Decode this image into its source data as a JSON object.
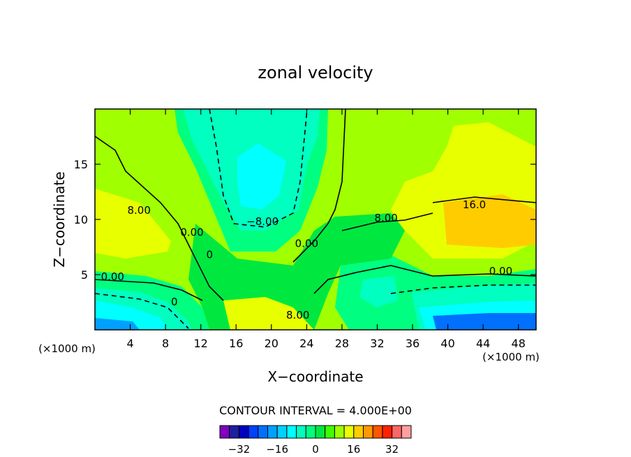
{
  "chart_data": {
    "type": "heatmap",
    "title": "zonal velocity",
    "xlabel": "X−coordinate",
    "ylabel": "Z−coordinate",
    "x_unit_label": "(×1000 m)",
    "y_unit_label": "(×1000 m)",
    "xlim": [
      0,
      50
    ],
    "ylim": [
      0,
      20
    ],
    "x_ticks": [
      4,
      8,
      12,
      16,
      20,
      24,
      28,
      32,
      36,
      40,
      44,
      48
    ],
    "y_ticks": [
      5,
      10,
      15
    ],
    "contour_interval_label": "CONTOUR INTERVAL = 4.000E+00",
    "contour_labels": [
      {
        "text": "8.00",
        "x": 5,
        "y": 10.5
      },
      {
        "text": "0.00",
        "x": 11,
        "y": 8.5
      },
      {
        "text": "0",
        "x": 13,
        "y": 6.5
      },
      {
        "text": "0.00",
        "x": 2,
        "y": 4.5
      },
      {
        "text": "−8.00",
        "x": 19,
        "y": 9.5
      },
      {
        "text": "0.00",
        "x": 24,
        "y": 7.5
      },
      {
        "text": "8.00",
        "x": 33,
        "y": 9.8
      },
      {
        "text": "16.0",
        "x": 43,
        "y": 11.0
      },
      {
        "text": "0.00",
        "x": 46,
        "y": 5.0
      },
      {
        "text": "8.00",
        "x": 23,
        "y": 1.0
      },
      {
        "text": "0",
        "x": 9,
        "y": 2.2
      }
    ],
    "colorbar": {
      "levels": [
        -36,
        -32,
        -28,
        -24,
        -20,
        -16,
        -12,
        -8,
        -4,
        0,
        4,
        8,
        12,
        16,
        20,
        24,
        28,
        32,
        36
      ],
      "tick_labels": [
        "−32",
        "−16",
        "0",
        "16",
        "32"
      ],
      "tick_values": [
        -32,
        -16,
        0,
        16,
        32
      ],
      "colors": [
        "#8000c0",
        "#2020a0",
        "#0000c0",
        "#0040ff",
        "#0070ff",
        "#00a0ff",
        "#00d0ff",
        "#00ffff",
        "#00ffc0",
        "#00ff80",
        "#00e840",
        "#40ff00",
        "#a0ff00",
        "#e8ff00",
        "#ffcc00",
        "#ff9900",
        "#ff5500",
        "#ff2200",
        "#ff6666",
        "#ffa0a0"
      ]
    }
  }
}
